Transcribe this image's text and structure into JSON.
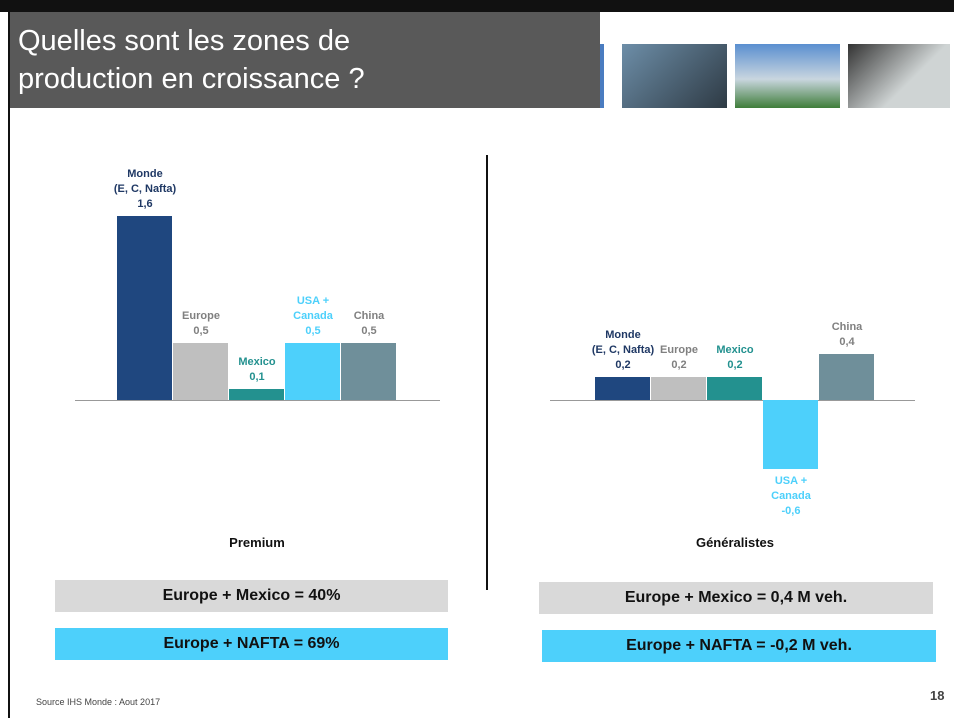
{
  "slide": {
    "title": "Quelles sont les zones de\nproduction en croissance ?",
    "source": "Source IHS Monde :  Aout 2017",
    "page_number": "18"
  },
  "chart_data": [
    {
      "type": "bar",
      "title": "Premium",
      "categories": [
        "Monde\n(E, C, Nafta)",
        "Europe",
        "Mexico",
        "USA +\nCanada",
        "China"
      ],
      "values": [
        1.6,
        0.5,
        0.1,
        0.5,
        0.5
      ],
      "value_labels": [
        "1,6",
        "0,5",
        "0,1",
        "0,5",
        "0,5"
      ],
      "colors": [
        "#1f477f",
        "#bfbfbf",
        "#23918f",
        "#4dd0fb",
        "#6f8f9a"
      ],
      "label_colors": [
        "#1f3864",
        "#808080",
        "#23918f",
        "#4dd0fb",
        "#808080"
      ],
      "notes": [
        "Europe + Mexico = 40%",
        "Europe + NAFTA = 69%"
      ]
    },
    {
      "type": "bar",
      "title": "Généralistes",
      "categories": [
        "Monde\n(E, C, Nafta)",
        "Europe",
        "Mexico",
        "USA +\nCanada",
        "China"
      ],
      "values": [
        0.2,
        0.2,
        0.2,
        -0.6,
        0.4
      ],
      "value_labels": [
        "0,2",
        "0,2",
        "0,2",
        "-0,6",
        "0,4"
      ],
      "colors": [
        "#1f477f",
        "#bfbfbf",
        "#23918f",
        "#4dd0fb",
        "#6f8f9a"
      ],
      "label_colors": [
        "#1f3864",
        "#808080",
        "#23918f",
        "#4dd0fb",
        "#808080"
      ],
      "notes": [
        "Europe + Mexico = 0,4 M veh.",
        "Europe + NAFTA = -0,2 M veh."
      ]
    }
  ]
}
